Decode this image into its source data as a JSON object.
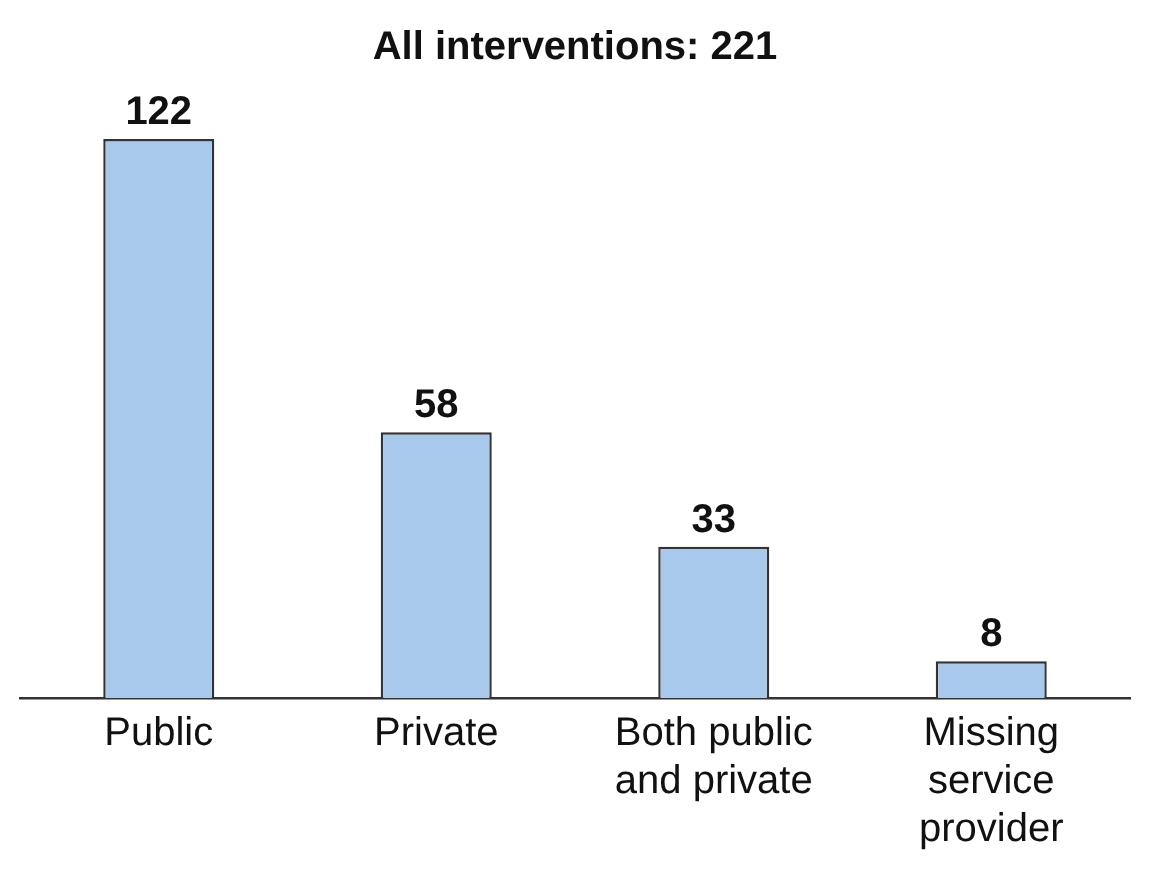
{
  "chart_data": {
    "type": "bar",
    "title": "All interventions: 221",
    "categories": [
      "Public",
      "Private",
      "Both public and private",
      "Missing service provider"
    ],
    "values": [
      122,
      58,
      33,
      8
    ],
    "color": "#a9c9ec",
    "data_labels": true,
    "grid": false,
    "legend": false
  }
}
